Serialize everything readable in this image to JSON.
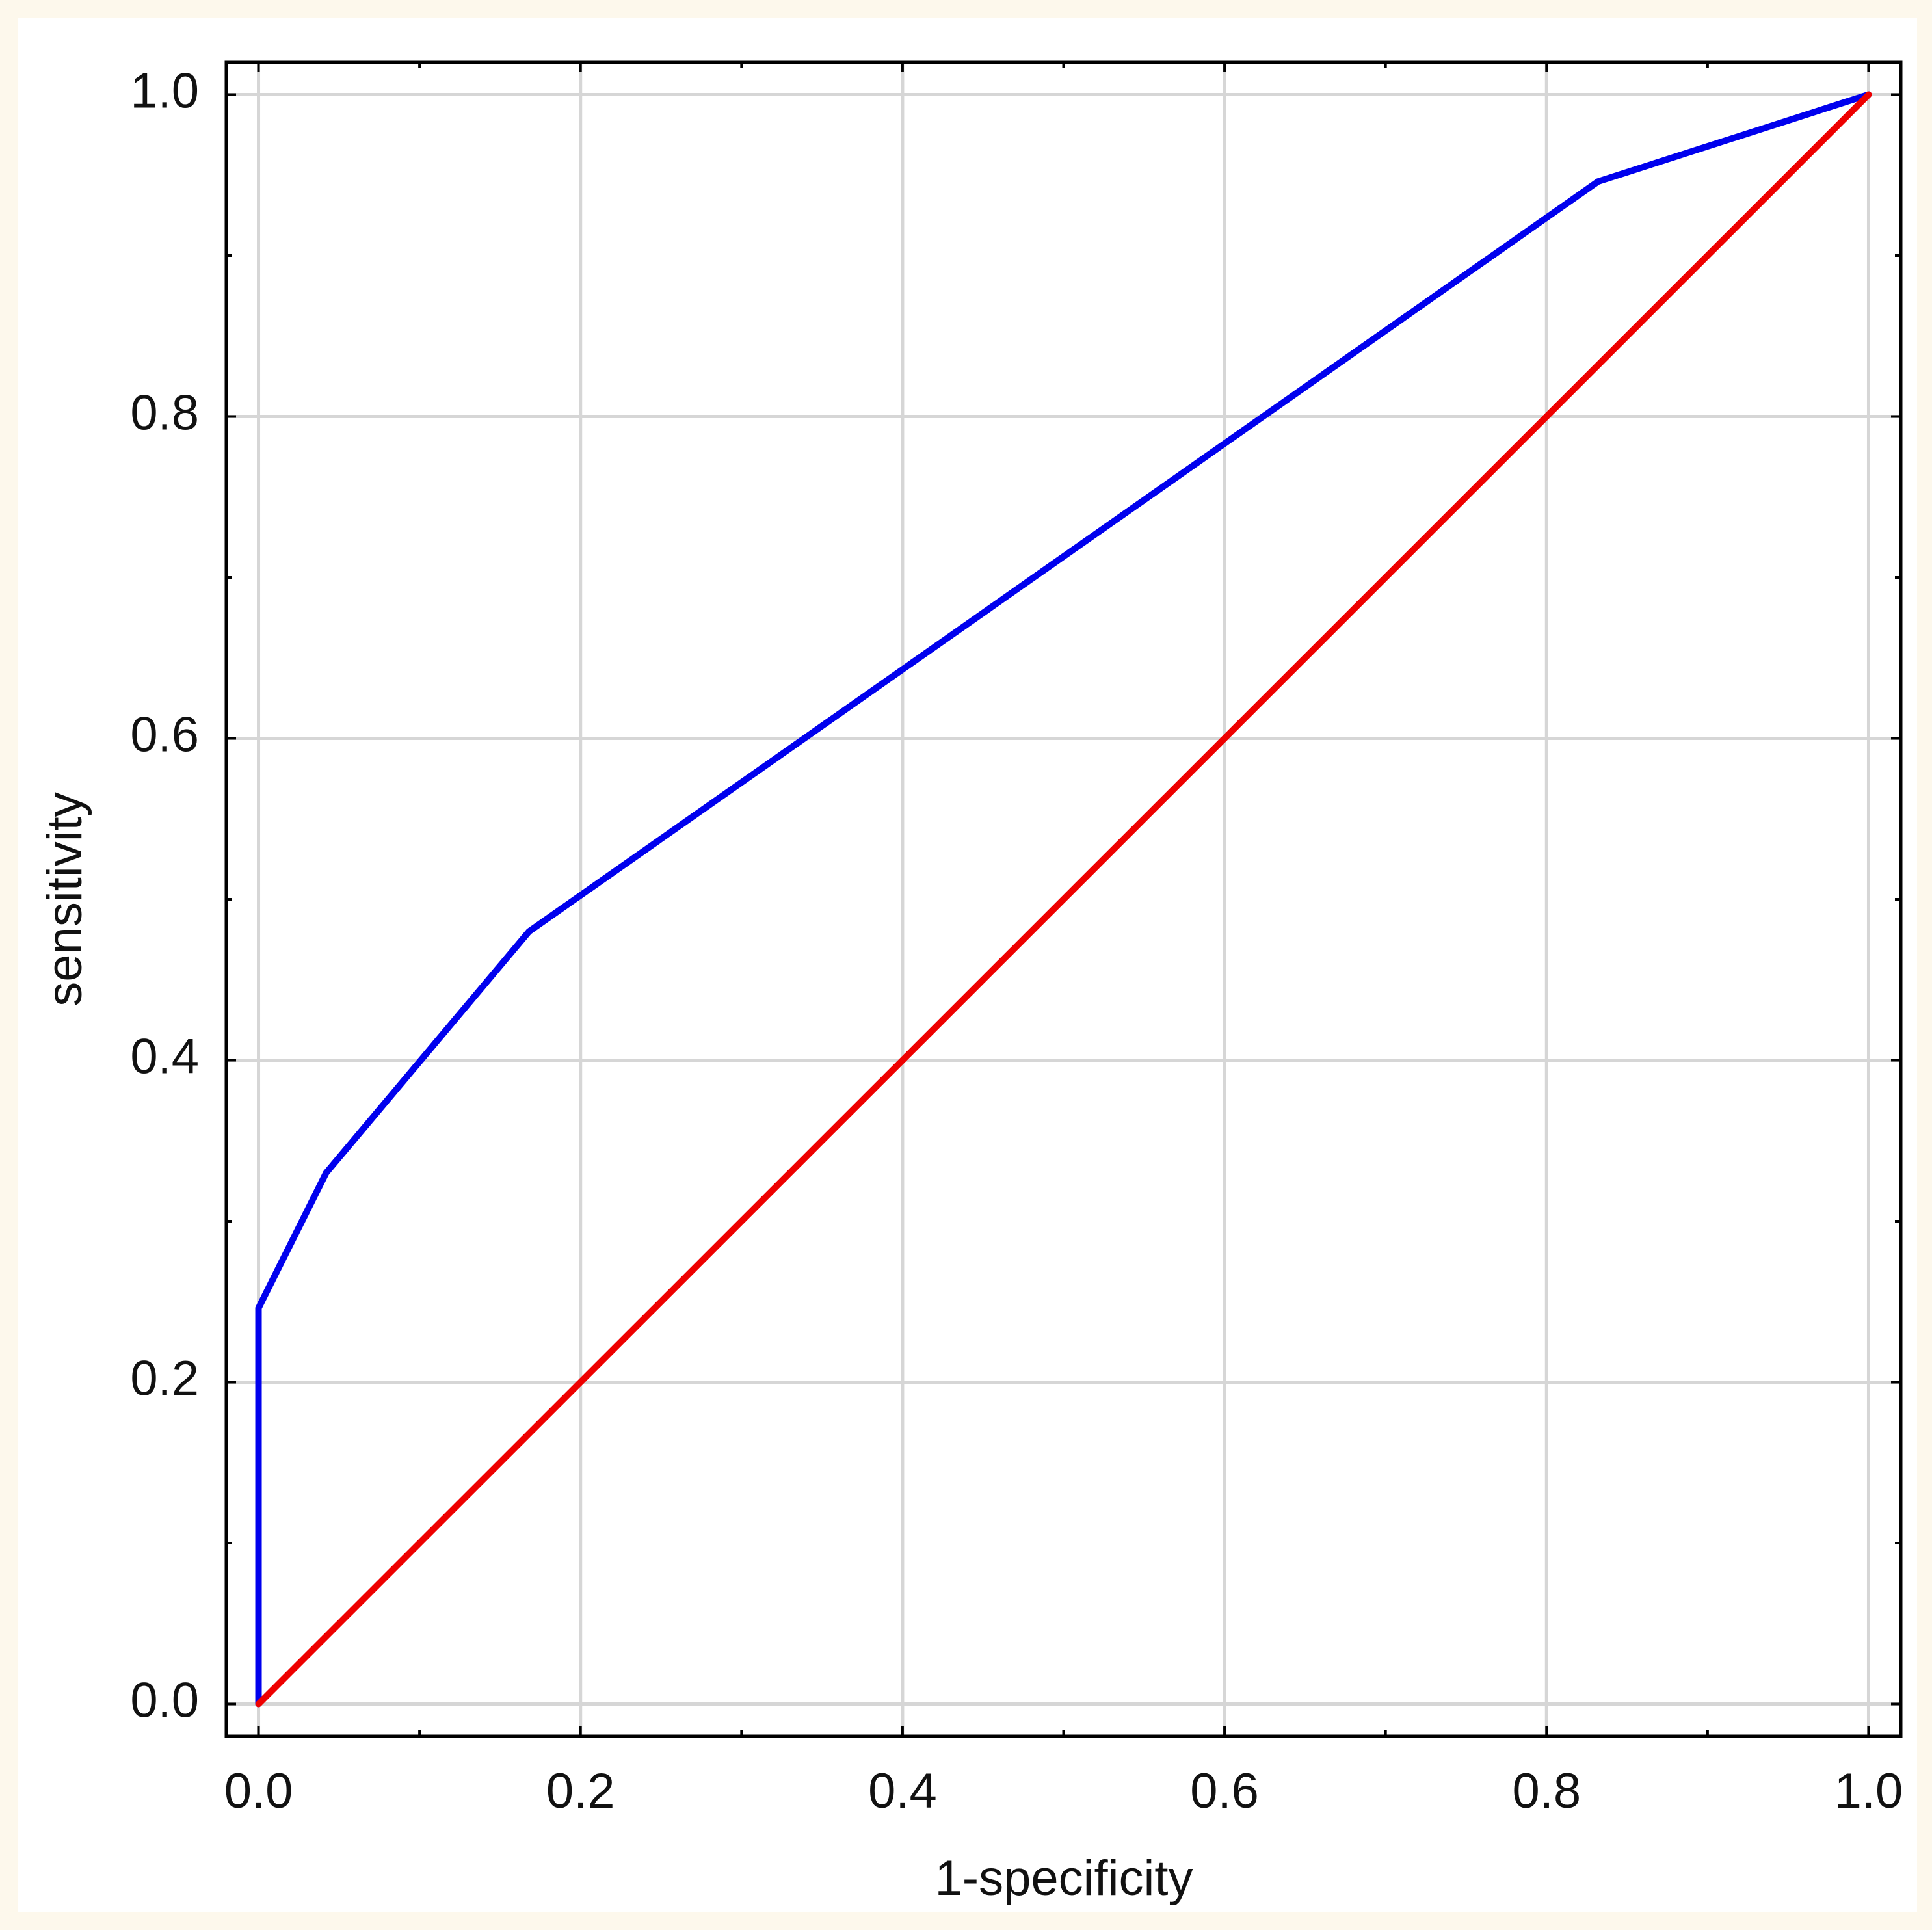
{
  "chart_data": {
    "type": "line",
    "x_label": "1-specificity",
    "y_label": "sensitivity",
    "xlim": [
      -0.02,
      1.02
    ],
    "ylim": [
      -0.02,
      1.02
    ],
    "xticks": [
      {
        "value": 0,
        "label": "0.0"
      },
      0.2,
      0.4,
      0.6,
      0.8,
      {
        "value": 1,
        "label": "1.0"
      }
    ],
    "yticks": [
      {
        "value": 0,
        "label": "0.0"
      },
      0.2,
      0.4,
      0.6,
      0.8,
      {
        "value": 1,
        "label": "1.0"
      }
    ],
    "xminorticks": [
      0.1,
      0.3,
      0.5,
      0.7,
      0.9
    ],
    "yminorticks": [
      0.1,
      0.3,
      0.5,
      0.7,
      0.9
    ],
    "grid": true,
    "series": [
      {
        "color": "#0000ee",
        "x": [
          0,
          0,
          0.042,
          0.168,
          0.832,
          1
        ],
        "values": [
          0,
          0.246,
          0.33,
          0.48,
          0.946,
          1
        ]
      },
      {
        "color": "#ee0000",
        "x": [
          0,
          1
        ],
        "values": [
          0,
          1
        ]
      }
    ]
  }
}
